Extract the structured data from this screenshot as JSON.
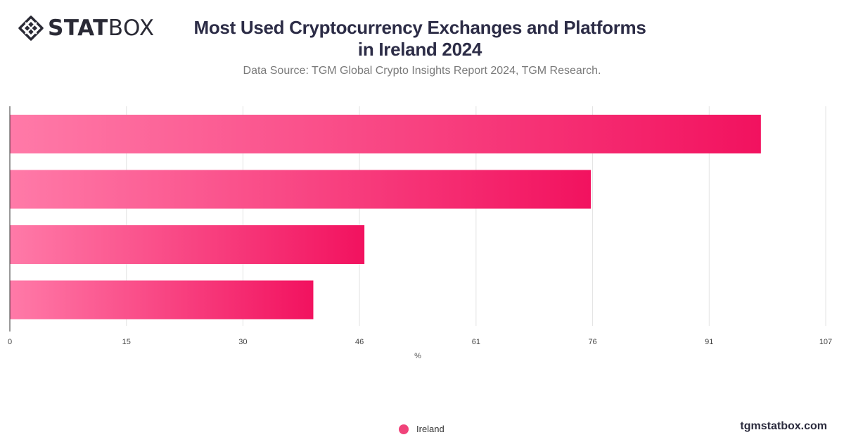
{
  "brand": {
    "bold": "STAT",
    "light": "BOX"
  },
  "title_line1": "Most Used Cryptocurrency Exchanges and Platforms",
  "title_line2": "in Ireland 2024",
  "subtitle": "Data Source: TGM Global Crypto Insights Report 2024, TGM Research.",
  "footer_url": "tgmstatbox.com",
  "colors": {
    "bar_start": "#ff7aa8",
    "bar_end": "#f2125f",
    "legend": "#f0437a",
    "grid": "#e3e3e3",
    "axis": "#333333"
  },
  "chart_data": {
    "type": "bar",
    "orientation": "horizontal",
    "categories": [
      "",
      "",
      "",
      ""
    ],
    "series": [
      {
        "name": "Ireland",
        "values": [
          98.5,
          76.2,
          46.5,
          39.8
        ]
      }
    ],
    "xlabel": "%",
    "xlim": [
      0,
      107
    ],
    "xticks": [
      "0",
      "15",
      "30",
      "46",
      "61",
      "76",
      "91",
      "107"
    ],
    "grid": true,
    "legend_position": "bottom"
  }
}
